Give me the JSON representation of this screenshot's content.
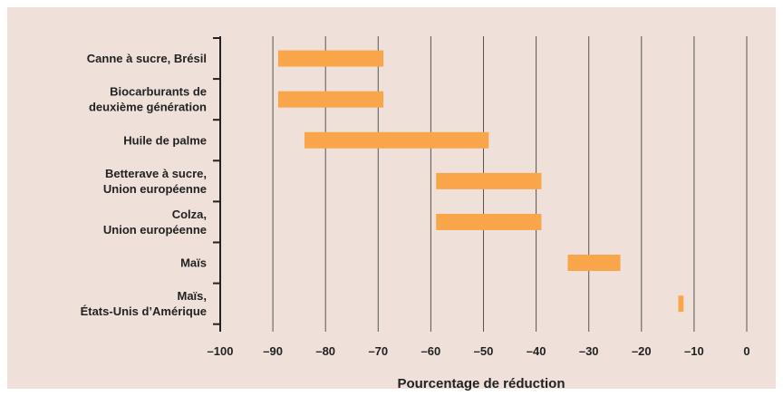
{
  "chart_data": {
    "type": "bar",
    "orientation": "horizontal",
    "style": "floating-range",
    "xlabel": "Pourcentage de réduction",
    "xlim": [
      -100,
      0
    ],
    "xticks": [
      -100,
      -90,
      -80,
      -70,
      -60,
      -50,
      -40,
      -30,
      -20,
      -10,
      0
    ],
    "xtick_labels": [
      "–100",
      "–90",
      "–80",
      "–70",
      "–60",
      "–50",
      "–40",
      "–30",
      "–20",
      "–10",
      "0"
    ],
    "grid": "vertical",
    "bar_color": "#f9a64a",
    "categories": [
      {
        "lines": [
          "Canne à sucre, Brésil"
        ],
        "low": -89,
        "high": -69
      },
      {
        "lines": [
          "Biocarburants de",
          "deuxième génération"
        ],
        "low": -89,
        "high": -69
      },
      {
        "lines": [
          "Huile de palme"
        ],
        "low": -84,
        "high": -49
      },
      {
        "lines": [
          "Betterave à sucre,",
          "Union européenne"
        ],
        "low": -59,
        "high": -39
      },
      {
        "lines": [
          "Colza,",
          "Union européenne"
        ],
        "low": -59,
        "high": -39
      },
      {
        "lines": [
          "Maïs"
        ],
        "low": -34,
        "high": -24
      },
      {
        "lines": [
          "Maïs,",
          "États-Unis d’Amérique"
        ],
        "low": -13,
        "high": -12
      }
    ]
  }
}
